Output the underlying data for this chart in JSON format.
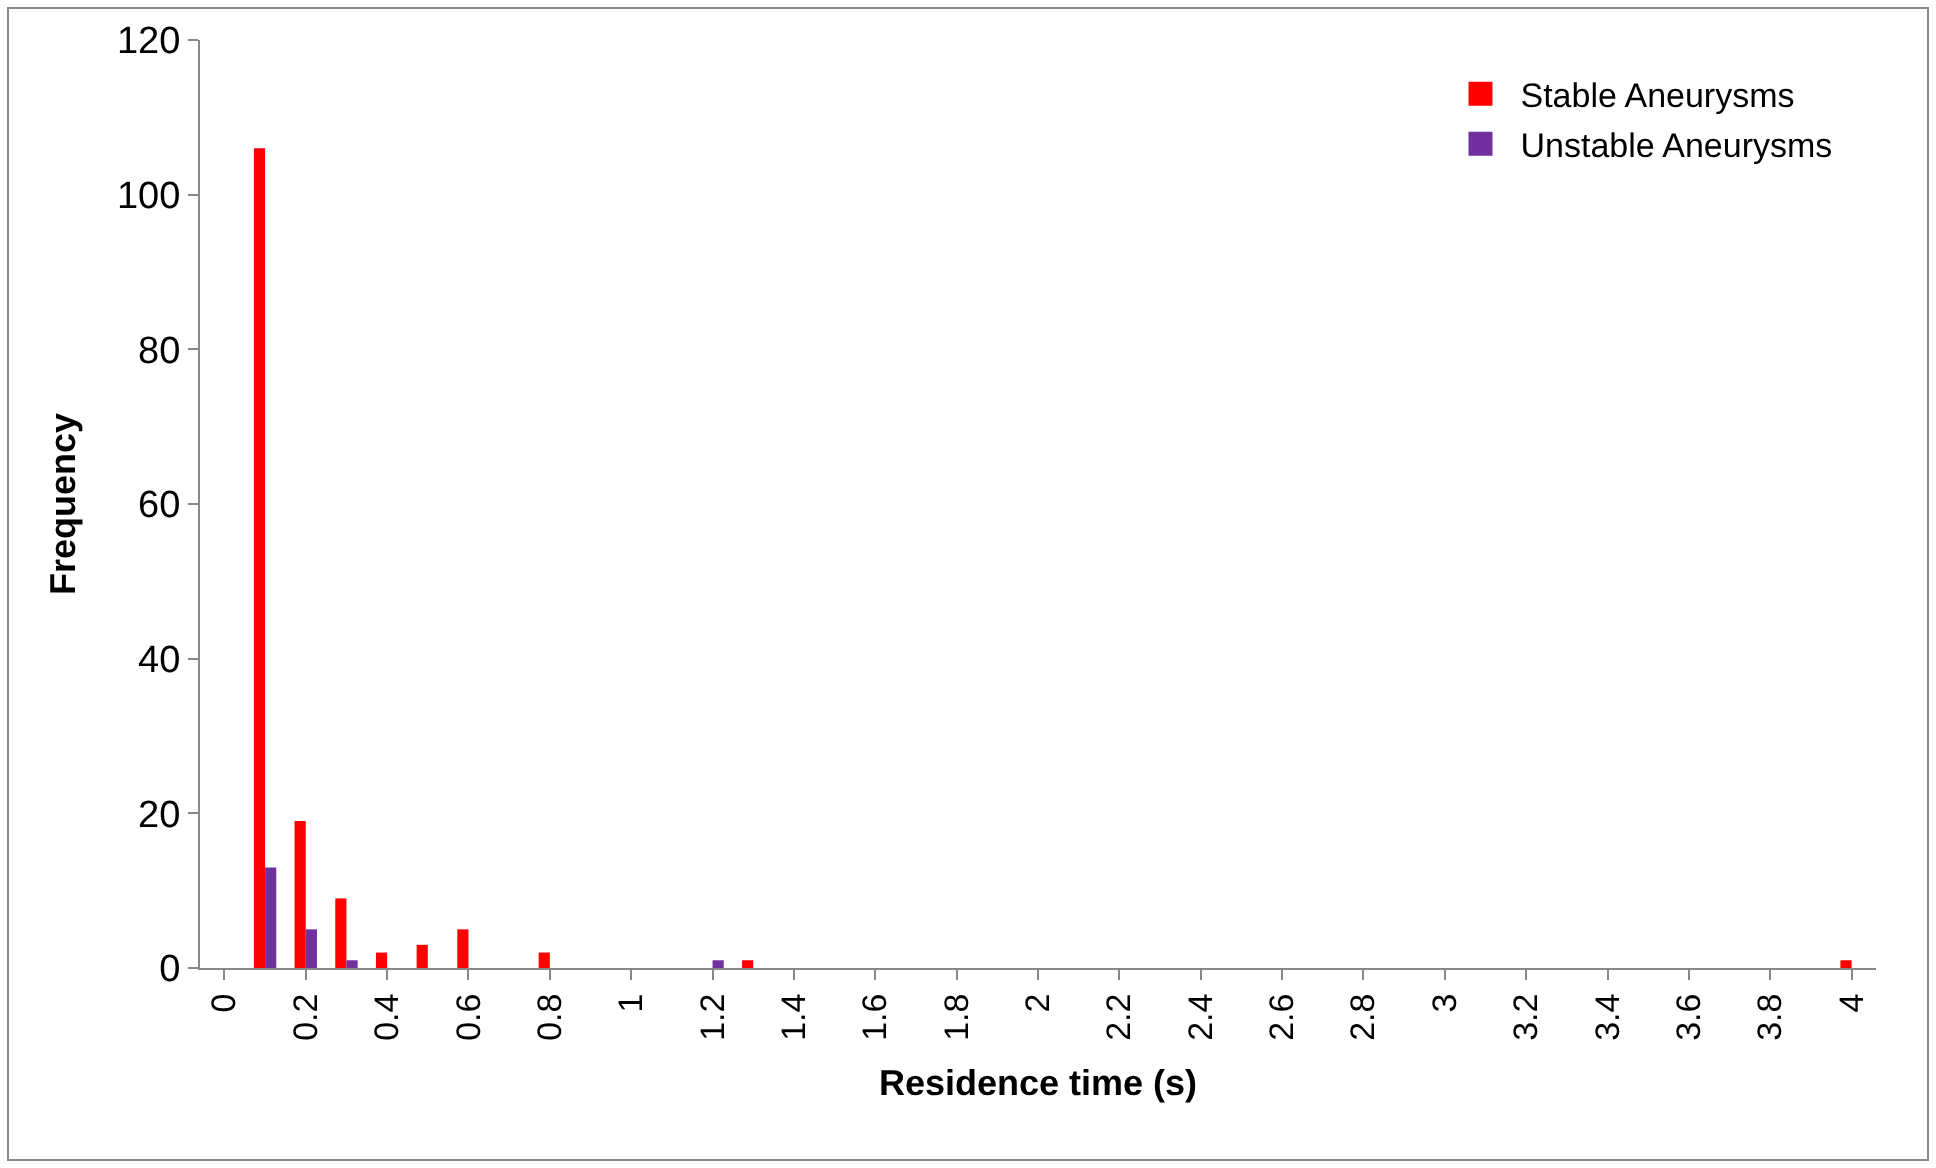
{
  "chart_data": {
    "type": "bar",
    "xlabel": "Residence time (s)",
    "ylabel": "Frequency",
    "categories": [
      "0",
      null,
      "0.2",
      null,
      "0.4",
      null,
      "0.6",
      null,
      "0.8",
      null,
      "1",
      null,
      "1.2",
      null,
      "1.4",
      null,
      "1.6",
      null,
      "1.8",
      null,
      "2",
      null,
      "2.2",
      null,
      "2.4",
      null,
      "2.6",
      null,
      "2.8",
      null,
      "3",
      null,
      "3.2",
      null,
      "3.4",
      null,
      "3.6",
      null,
      "3.8",
      null,
      "4"
    ],
    "series": [
      {
        "name": "Stable Aneurysms",
        "color": "#ff0000",
        "values": [
          0,
          106,
          19,
          9,
          2,
          3,
          5,
          0,
          2,
          0,
          0,
          0,
          0,
          1,
          0,
          0,
          0,
          0,
          0,
          0,
          0,
          0,
          0,
          0,
          0,
          0,
          0,
          0,
          0,
          0,
          0,
          0,
          0,
          0,
          0,
          0,
          0,
          0,
          0,
          0,
          1
        ]
      },
      {
        "name": "Unstable Aneurysms",
        "color": "#7030a0",
        "values": [
          0,
          13,
          5,
          1,
          0,
          0,
          0,
          0,
          0,
          0,
          0,
          0,
          1,
          0,
          0,
          0,
          0,
          0,
          0,
          0,
          0,
          0,
          0,
          0,
          0,
          0,
          0,
          0,
          0,
          0,
          0,
          0,
          0,
          0,
          0,
          0,
          0,
          0,
          0,
          0,
          0
        ]
      }
    ],
    "ylim": [
      0,
      120
    ],
    "yticks": [
      0,
      20,
      40,
      60,
      80,
      100,
      120
    ],
    "legend": "top right"
  }
}
